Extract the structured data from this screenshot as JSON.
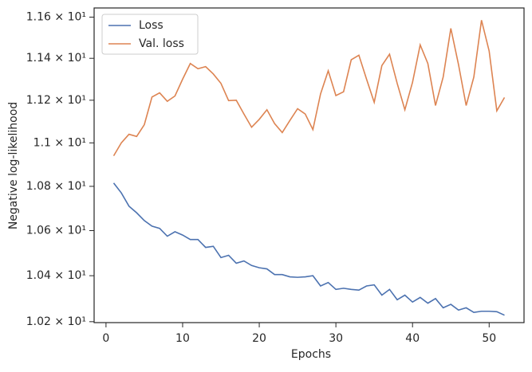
{
  "chart_data": {
    "type": "line",
    "xlabel": "Epochs",
    "ylabel": "Negative log-likelihood",
    "x": [
      1,
      2,
      3,
      4,
      5,
      6,
      7,
      8,
      9,
      10,
      11,
      12,
      13,
      14,
      15,
      16,
      17,
      18,
      19,
      20,
      21,
      22,
      23,
      24,
      25,
      26,
      27,
      28,
      29,
      30,
      31,
      32,
      33,
      34,
      35,
      36,
      37,
      38,
      39,
      40,
      41,
      42,
      43,
      44,
      45,
      46,
      47,
      48,
      49,
      50,
      51,
      52
    ],
    "series": [
      {
        "name": "Loss",
        "color": "#4c72b0",
        "values": [
          10.815,
          10.77,
          10.71,
          10.68,
          10.645,
          10.62,
          10.61,
          10.575,
          10.595,
          10.58,
          10.56,
          10.56,
          10.525,
          10.53,
          10.48,
          10.49,
          10.455,
          10.465,
          10.445,
          10.435,
          10.43,
          10.405,
          10.405,
          10.395,
          10.393,
          10.395,
          10.4,
          10.355,
          10.37,
          10.34,
          10.345,
          10.34,
          10.337,
          10.355,
          10.36,
          10.315,
          10.34,
          10.295,
          10.315,
          10.285,
          10.305,
          10.28,
          10.3,
          10.26,
          10.275,
          10.25,
          10.26,
          10.24,
          10.245,
          10.245,
          10.243,
          10.228
        ]
      },
      {
        "name": "Val. loss",
        "color": "#dd8452",
        "values": [
          10.94,
          11.0,
          11.04,
          11.03,
          11.085,
          11.215,
          11.235,
          11.195,
          11.22,
          11.3,
          11.375,
          11.35,
          11.36,
          11.325,
          11.28,
          11.198,
          11.2,
          11.135,
          11.073,
          11.11,
          11.155,
          11.09,
          11.048,
          11.105,
          11.16,
          11.135,
          11.062,
          11.23,
          11.34,
          11.222,
          11.24,
          11.393,
          11.415,
          11.3,
          11.19,
          11.365,
          11.42,
          11.28,
          11.155,
          11.285,
          11.465,
          11.375,
          11.175,
          11.31,
          11.545,
          11.37,
          11.175,
          11.31,
          11.585,
          11.435,
          11.15,
          11.213
        ]
      }
    ],
    "xlim": [
      -1.55,
      54.55
    ],
    "xticks": [
      0,
      10,
      20,
      30,
      40,
      50
    ],
    "ylim": [
      10.196,
      11.645
    ],
    "ylog": true,
    "yticks": [
      {
        "value": 10.2,
        "label": "1.02 × 10¹"
      },
      {
        "value": 10.4,
        "label": "1.04 × 10¹"
      },
      {
        "value": 10.6,
        "label": "1.06 × 10¹"
      },
      {
        "value": 10.8,
        "label": "1.08 × 10¹"
      },
      {
        "value": 11.0,
        "label": "1.1 × 10¹"
      },
      {
        "value": 11.2,
        "label": "1.12 × 10¹"
      },
      {
        "value": 11.4,
        "label": "1.14 × 10¹"
      },
      {
        "value": 11.6,
        "label": "1.16 × 10¹"
      }
    ],
    "legend": "upper left"
  }
}
